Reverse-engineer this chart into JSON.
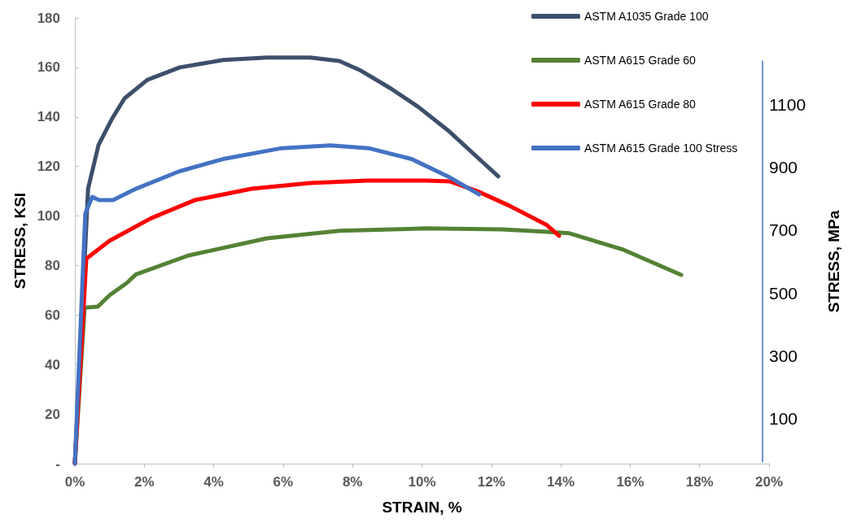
{
  "chart_data": {
    "type": "line",
    "xlabel": "STRAIN, %",
    "ylabel": "STRESS, KSI",
    "y2label": "STRESS, MPa",
    "xlim": [
      0,
      20
    ],
    "xticks": [
      {
        "value": 0,
        "label": "0%"
      },
      {
        "value": 2,
        "label": "2%"
      },
      {
        "value": 4,
        "label": "4%"
      },
      {
        "value": 6,
        "label": "6%"
      },
      {
        "value": 8,
        "label": "8%"
      },
      {
        "value": 10,
        "label": "10%"
      },
      {
        "value": 12,
        "label": "12%"
      },
      {
        "value": 14,
        "label": "14%"
      },
      {
        "value": 16,
        "label": "16%"
      },
      {
        "value": 18,
        "label": "18%"
      },
      {
        "value": 20,
        "label": "20%"
      }
    ],
    "ylim": [
      0,
      180
    ],
    "yticks": [
      {
        "value": 0,
        "label": "-"
      },
      20,
      40,
      60,
      80,
      100,
      120,
      140,
      160,
      180
    ],
    "y2lim": [
      -40,
      1240
    ],
    "y2ticks": [
      100,
      300,
      500,
      700,
      900,
      1100
    ],
    "grid": false,
    "legend": "top right",
    "marker": "none",
    "line_style": "solid",
    "series": [
      {
        "name": "ASTM A1035 Grade 100",
        "color": "#3d4f6b",
        "x": [
          0,
          0.38,
          0.68,
          1.06,
          1.43,
          2.09,
          3.02,
          4.27,
          5.53,
          6.78,
          7.62,
          8.2,
          9.1,
          9.9,
          10.8,
          11.65,
          12.2
        ],
        "values": [
          0,
          111,
          128.6,
          139,
          147.5,
          155,
          160,
          163,
          164,
          164,
          162.6,
          159,
          151.5,
          144,
          134,
          123,
          116
        ]
      },
      {
        "name": "ASTM A615 Grade 60",
        "color": "#548235",
        "x": [
          0,
          0.28,
          0.66,
          1.0,
          1.5,
          1.76,
          3.26,
          5.53,
          7.62,
          10.1,
          12.3,
          13.6,
          14.25,
          15.8,
          17.47
        ],
        "values": [
          0,
          63,
          63.4,
          68,
          73,
          76.4,
          84,
          91,
          94,
          95,
          94.6,
          93.6,
          93,
          86.4,
          76.2
        ]
      },
      {
        "name": "ASTM A615 Grade 80",
        "color": "#ff0000",
        "x": [
          0,
          0.33,
          1.0,
          2.18,
          3.45,
          5.1,
          6.78,
          8.46,
          10.1,
          10.8,
          11.6,
          12.54,
          13.6,
          13.95
        ],
        "values": [
          0,
          82.8,
          90,
          99,
          106.4,
          111,
          113.3,
          114.3,
          114.3,
          114,
          110,
          104,
          96.3,
          92
        ]
      },
      {
        "name": "ASTM A615 Grade 100 Stress",
        "color": "#4472c4",
        "x": [
          0,
          0.3,
          0.5,
          0.7,
          1.1,
          1.76,
          3.0,
          4.27,
          5.96,
          7.36,
          8.46,
          9.7,
          10.8,
          11.65
        ],
        "values": [
          0,
          101,
          107.7,
          106.4,
          106.4,
          111,
          118,
          123,
          127.4,
          128.5,
          127.4,
          123,
          115.6,
          108.7
        ]
      }
    ]
  }
}
